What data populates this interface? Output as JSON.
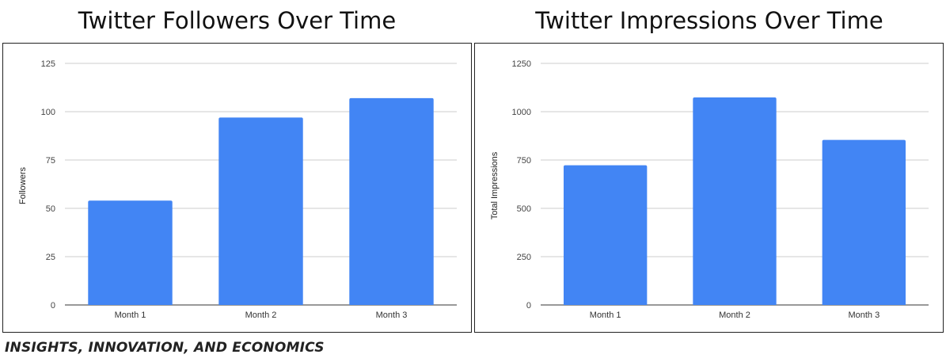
{
  "chart_data": [
    {
      "type": "bar",
      "title": "Twitter Followers Over Time",
      "xlabel": "",
      "ylabel": "Followers",
      "categories": [
        "Month 1",
        "Month 2",
        "Month 3"
      ],
      "values": [
        54,
        97,
        107
      ],
      "ylim": [
        0,
        125
      ],
      "yticks": [
        0,
        25,
        50,
        75,
        100,
        125
      ],
      "grid": true,
      "bar_color": "#4285f4"
    },
    {
      "type": "bar",
      "title": "Twitter Impressions Over Time",
      "xlabel": "",
      "ylabel": "Total Impressions",
      "categories": [
        "Month 1",
        "Month 2",
        "Month 3"
      ],
      "values": [
        723,
        1074,
        854
      ],
      "ylim": [
        0,
        1250
      ],
      "yticks": [
        0,
        250,
        500,
        750,
        1000,
        1250
      ],
      "grid": true,
      "bar_color": "#4285f4"
    }
  ],
  "footer": {
    "text": "INSIGHTS, INNOVATION, AND ECONOMICS"
  }
}
